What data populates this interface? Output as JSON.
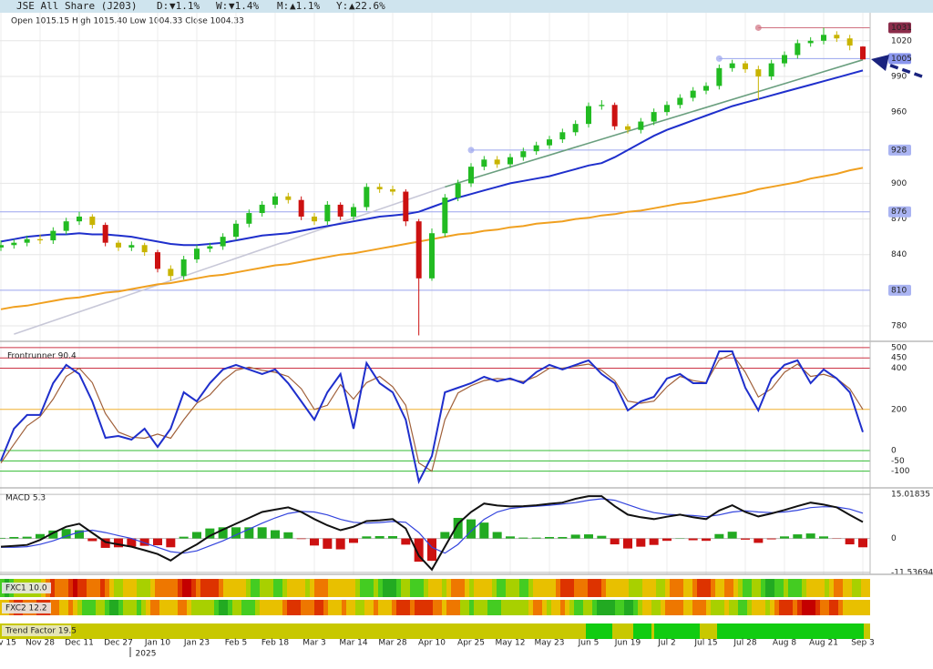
{
  "header": {
    "title": "JSE All Share (J203)",
    "d_label": "D:",
    "d_change": "▼1.1%",
    "w_label": "W:",
    "w_change": "▼1.4%",
    "m_label": "M:",
    "m_change": "▲1.1%",
    "y_label": "Y:",
    "y_change": "▲22.6%",
    "ohlc": "Open 1015.15 High 1015.40 Low 1004.33 Close 1004.33",
    "down_color": "#cc1111",
    "up_color": "#119911"
  },
  "strips": {
    "fxc1": "FXC1 10.0",
    "fxc2": "FXC2 12.2",
    "trend": "Trend Factor 19.5"
  },
  "year_label": "2025",
  "chart_data": [
    {
      "type": "candlestick",
      "categories": [
        "v 15",
        null,
        null,
        "Nov 28",
        null,
        null,
        "Dec 11",
        null,
        null,
        "Dec 27",
        null,
        null,
        "Jan 10",
        null,
        null,
        "Jan 23",
        null,
        null,
        "Feb 5",
        null,
        null,
        "Feb 18",
        null,
        null,
        "Mar 3",
        null,
        null,
        "Mar 14",
        null,
        null,
        "Mar 28",
        null,
        null,
        "Apr 10",
        null,
        null,
        "Apr 25",
        null,
        null,
        "May 12",
        null,
        null,
        "May 23",
        null,
        null,
        "Jun 5",
        null,
        null,
        "Jun 19",
        null,
        null,
        "Jul 2",
        null,
        null,
        "Jul 15",
        null,
        null,
        "Jul 28",
        null,
        null,
        "Aug 8",
        null,
        null,
        "Aug 21",
        null,
        null,
        "Sep 3"
      ],
      "open": [
        846,
        848,
        850,
        853,
        852,
        860,
        868,
        872,
        865,
        850,
        846,
        848,
        842,
        828,
        822,
        836,
        845,
        847,
        855,
        866,
        875,
        882,
        889,
        886,
        872,
        868,
        882,
        872,
        880,
        897,
        895,
        893,
        868,
        820,
        858,
        888,
        900,
        914,
        920,
        916,
        922,
        927,
        932,
        937,
        943,
        950,
        965,
        966,
        948,
        945,
        952,
        960,
        966,
        972,
        978,
        982,
        997,
        1001,
        996,
        990,
        1001,
        1008,
        1018,
        1020,
        1025,
        1022,
        1015.15
      ],
      "high": [
        852,
        853,
        856,
        857,
        863,
        871,
        876,
        874,
        867,
        852,
        851,
        850,
        844,
        831,
        839,
        848,
        850,
        858,
        869,
        878,
        885,
        892,
        892,
        889,
        875,
        885,
        884,
        883,
        900,
        900,
        898,
        895,
        870,
        862,
        891,
        903,
        917,
        923,
        923,
        925,
        930,
        935,
        940,
        946,
        953,
        968,
        970,
        968,
        950,
        955,
        963,
        969,
        975,
        981,
        985,
        1000,
        1004,
        1003,
        999,
        1004,
        1011,
        1021,
        1023,
        1031,
        1028,
        1025,
        1015.4
      ],
      "low": [
        843,
        845,
        847,
        849,
        849,
        857,
        865,
        862,
        847,
        843,
        843,
        839,
        825,
        818,
        819,
        833,
        842,
        844,
        852,
        863,
        872,
        879,
        883,
        869,
        865,
        865,
        869,
        869,
        877,
        892,
        890,
        864,
        772,
        818,
        855,
        885,
        897,
        911,
        913,
        913,
        919,
        924,
        929,
        934,
        940,
        947,
        962,
        945,
        942,
        942,
        949,
        957,
        963,
        969,
        975,
        979,
        994,
        993,
        970,
        987,
        998,
        1005,
        1015,
        1017,
        1019,
        1012,
        1004.33
      ],
      "close": [
        848,
        850,
        853,
        852,
        860,
        868,
        872,
        865,
        850,
        846,
        848,
        842,
        828,
        822,
        836,
        845,
        847,
        855,
        866,
        875,
        882,
        889,
        886,
        872,
        868,
        882,
        872,
        880,
        897,
        895,
        893,
        868,
        820,
        858,
        888,
        900,
        914,
        920,
        916,
        922,
        927,
        932,
        937,
        943,
        950,
        965,
        966,
        948,
        945,
        952,
        960,
        966,
        972,
        978,
        982,
        997,
        1001,
        996,
        990,
        1001,
        1008,
        1018,
        1020,
        1025,
        1022,
        1016,
        1004.33
      ],
      "up_color": "#22bb22",
      "down_color": "#cc1111",
      "neutral_color": "#c8b400",
      "series": [
        {
          "color": "#1f2fcc",
          "values": [
            851,
            853,
            855,
            856,
            857,
            857,
            858,
            857,
            857,
            856,
            855,
            853,
            851,
            849,
            848,
            848,
            849,
            850,
            852,
            854,
            856,
            857,
            858,
            860,
            862,
            864,
            866,
            868,
            870,
            872,
            873,
            874,
            876,
            880,
            884,
            888,
            891,
            894,
            897,
            900,
            902,
            904,
            906,
            909,
            912,
            915,
            917,
            922,
            928,
            934,
            940,
            945,
            949,
            953,
            957,
            961,
            965,
            968,
            971,
            974,
            977,
            980,
            983,
            986,
            989,
            992,
            995
          ]
        },
        {
          "color": "#f0a020",
          "values": [
            794,
            796,
            797,
            799,
            801,
            803,
            804,
            806,
            808,
            809,
            811,
            813,
            815,
            816,
            818,
            820,
            822,
            823,
            825,
            827,
            829,
            831,
            832,
            834,
            836,
            838,
            840,
            841,
            843,
            845,
            847,
            849,
            851,
            853,
            855,
            857,
            858,
            860,
            861,
            863,
            864,
            866,
            867,
            868,
            870,
            871,
            873,
            874,
            876,
            877,
            879,
            881,
            883,
            884,
            886,
            888,
            890,
            892,
            895,
            897,
            899,
            901,
            904,
            906,
            908,
            911,
            913
          ]
        }
      ],
      "trendlines": [
        {
          "color": "#c8c8d8",
          "from": [
            1,
            773
          ],
          "to": [
            34,
            897
          ]
        },
        {
          "color": "#6a9f7f",
          "from": [
            34,
            897
          ],
          "to": [
            66,
            1004
          ]
        }
      ],
      "levels": [
        {
          "value": 1031,
          "start": 58,
          "color": "#d07080",
          "label_bg": "#8b2c4a",
          "label_color": "#ffffff"
        },
        {
          "value": 1005,
          "start": 55,
          "color": "#9aa4ee",
          "label_bg": "#8a96ee",
          "label_color": "#ffffff"
        },
        {
          "value": 928,
          "start": 36,
          "color": "#9aa4ee",
          "label_bg": "#aab4f2",
          "label_color": "#ffffff"
        },
        {
          "value": 876,
          "color": "#9aa4ee",
          "label_bg": "#aab4f2",
          "label_color": "#ffffff"
        },
        {
          "value": 810,
          "color": "#9aa4ee",
          "label_bg": "#aab4f2",
          "label_color": "#ffffff"
        }
      ],
      "ylim": [
        767,
        1039
      ],
      "yticks": [
        780,
        840,
        870,
        900,
        960,
        990,
        1020
      ],
      "grid": true
    },
    {
      "type": "oscillator",
      "title": "Frontrunner 90.4",
      "series": [
        {
          "color": "#1f2fcc",
          "values": [
            -49,
            106,
            173,
            173,
            327,
            416,
            372,
            239,
            62,
            71,
            53,
            106,
            18,
            106,
            283,
            239,
            327,
            394,
            416,
            394,
            372,
            394,
            327,
            239,
            150,
            283,
            372,
            106,
            425,
            327,
            283,
            150,
            -150,
            -27,
            283,
            305,
            327,
            358,
            336,
            350,
            327,
            381,
            416,
            394,
            416,
            438,
            372,
            327,
            195,
            239,
            261,
            350,
            372,
            327,
            327,
            482,
            482,
            305,
            195,
            350,
            416,
            438,
            327,
            394,
            350,
            283,
            90
          ]
        },
        {
          "color": "#a0603a",
          "values": [
            -60,
            30,
            120,
            165,
            250,
            360,
            400,
            330,
            180,
            90,
            65,
            60,
            80,
            60,
            150,
            230,
            270,
            340,
            390,
            405,
            390,
            380,
            360,
            300,
            200,
            220,
            320,
            250,
            330,
            360,
            310,
            220,
            -60,
            -100,
            150,
            280,
            315,
            340,
            350,
            345,
            335,
            360,
            400,
            400,
            410,
            420,
            390,
            340,
            240,
            230,
            240,
            310,
            360,
            340,
            330,
            440,
            470,
            380,
            260,
            300,
            380,
            420,
            360,
            370,
            350,
            300,
            200
          ]
        }
      ],
      "ylim": [
        -181,
        526
      ],
      "yticks": [
        500,
        450,
        400,
        200,
        0,
        -50,
        -100
      ],
      "tick_colors": [
        "#cc3344",
        "#cc3344",
        "#cc3344",
        "#f0b030",
        "#33bb33",
        "#33bb33",
        "#33bb33"
      ]
    },
    {
      "type": "macd",
      "title": "MACD 5.3",
      "histogram": [
        0.2,
        0.5,
        0.6,
        1.5,
        2.7,
        3.2,
        2.8,
        -0.9,
        -3.2,
        -3,
        -2.8,
        -2.5,
        -2.3,
        -3,
        0.6,
        2.2,
        3.4,
        3.8,
        3.8,
        3.8,
        3.8,
        2.8,
        2.1,
        -0.2,
        -2.4,
        -3.5,
        -3.7,
        -1.5,
        0.7,
        0.8,
        0.8,
        -2.1,
        -7.9,
        -7.6,
        2.2,
        7,
        6.5,
        5.4,
        2.2,
        0.7,
        0.3,
        0.3,
        0.5,
        0.5,
        1.3,
        1.4,
        0.9,
        -2,
        -3.4,
        -2.8,
        -2.2,
        -0.8,
        0.1,
        -0.6,
        -0.8,
        1.5,
        2.3,
        -0.4,
        -1.5,
        -0.3,
        0.7,
        1.4,
        1.7,
        0.7,
        -0.1,
        -2,
        -3
      ],
      "positive_color": "#22aa22",
      "negative_color": "#cc1111",
      "series": [
        {
          "color": "#111111",
          "values": [
            -2.8,
            -2.5,
            -2.2,
            -0.5,
            1.9,
            4,
            5,
            1.9,
            -1.2,
            -2,
            -2.8,
            -4,
            -5.3,
            -7.5,
            -4.4,
            -2,
            0.9,
            3,
            5,
            7,
            9,
            9.8,
            10.6,
            9,
            6.6,
            4.5,
            2.8,
            4,
            5.9,
            6.2,
            6.6,
            3.4,
            -5.9,
            -10.6,
            -2.8,
            5,
            9,
            11.9,
            11.2,
            10.9,
            11,
            11.3,
            11.8,
            12.2,
            13.5,
            14.4,
            14.4,
            11,
            8.1,
            7.2,
            6.6,
            7.4,
            8.1,
            7.2,
            6.6,
            9.5,
            11.3,
            9,
            7.5,
            8.5,
            9.7,
            11,
            12.2,
            11.5,
            10.6,
            8,
            5.6
          ]
        },
        {
          "color": "#3344dd",
          "values": [
            -3,
            -3,
            -2.8,
            -2,
            -0.8,
            0.8,
            2.2,
            2.8,
            2,
            1,
            0,
            -1.5,
            -3,
            -4.5,
            -5,
            -4.2,
            -2.5,
            -0.8,
            1.2,
            3.2,
            5.2,
            7,
            8.5,
            9.2,
            9,
            8,
            6.5,
            5.5,
            5.2,
            5.4,
            5.8,
            5.5,
            2,
            -3,
            -5,
            -2,
            2.5,
            6.5,
            9,
            10.2,
            10.7,
            11,
            11.3,
            11.7,
            12.2,
            13,
            13.5,
            13,
            11.5,
            10,
            8.8,
            8.2,
            8,
            7.8,
            7.4,
            8,
            9,
            9.4,
            9,
            8.8,
            9,
            9.6,
            10.5,
            10.8,
            10.7,
            10,
            8.6
          ]
        }
      ],
      "ylim": [
        -12.2,
        16.9
      ],
      "yticks": [
        15.01835,
        0,
        -11.53694
      ]
    }
  ]
}
